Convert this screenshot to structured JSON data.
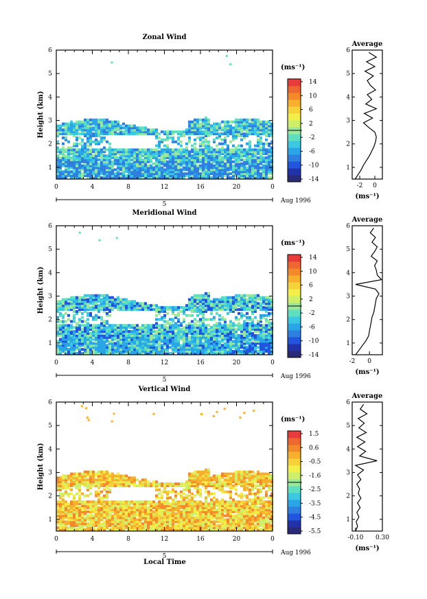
{
  "figure": {
    "bottom_label": "Local Time"
  },
  "colors": {
    "scale": [
      "#2a2a7a",
      "#2233aa",
      "#2255dd",
      "#2f7fe0",
      "#2aa6e6",
      "#3cc8e0",
      "#5ee0c0",
      "#9be89a",
      "#cfee6a",
      "#f2ee4a",
      "#f6d23a",
      "#f6b02e",
      "#f28a2c",
      "#ee6630",
      "#e83c3c"
    ],
    "zonal_field": [
      "#2aa6e6",
      "#3cc8e0",
      "#5ee0c0",
      "#2f7fe0",
      "#9be89a"
    ],
    "meridional_field": [
      "#3cc8e0",
      "#5ee0c0",
      "#9be89a",
      "#2aa6e6",
      "#2255dd"
    ],
    "vertical_field": [
      "#f6d23a",
      "#f2ee4a",
      "#f6b02e",
      "#cfee6a",
      "#f28a2c"
    ]
  },
  "chart_data": [
    {
      "id": "zonal",
      "type": "heatmap",
      "title": "Zonal Wind",
      "ylabel": "Height (km)",
      "xlim": [
        0,
        24
      ],
      "ylim": [
        0.5,
        6
      ],
      "x_ticks": [
        "0",
        "4",
        "8",
        "12",
        "16",
        "20",
        "0"
      ],
      "y_ticks": [
        "1",
        "2",
        "3",
        "4",
        "5",
        "6"
      ],
      "date_day": "5",
      "date_label": "Aug 1996",
      "colorbar": {
        "unit": "(ms⁻¹)",
        "ticks": [
          "14",
          "10",
          "6",
          "2",
          "-2",
          "-6",
          "-10",
          "-14"
        ],
        "range": [
          -16,
          16
        ]
      },
      "profile": {
        "title": "Average",
        "xlim": [
          -3,
          1
        ],
        "x_ticks": [
          "-2",
          "0"
        ],
        "xlabel": "(ms⁻¹)",
        "heights": [
          0.5,
          0.7,
          0.9,
          1.1,
          1.3,
          1.5,
          1.7,
          1.9,
          2.1,
          2.3,
          2.5,
          2.7,
          2.9,
          3.1,
          3.3,
          3.5,
          3.7,
          3.9,
          4.1,
          4.3,
          4.5,
          4.7,
          4.9,
          5.1,
          5.3,
          5.5,
          5.7,
          5.9
        ],
        "values": [
          -2.6,
          -2.2,
          -1.8,
          -1.5,
          -1.1,
          -0.7,
          -0.4,
          -0.1,
          0.1,
          0.2,
          0.0,
          -0.8,
          -1.5,
          -0.3,
          -1.4,
          0.2,
          -1.2,
          -0.4,
          -1.0,
          0.1,
          -0.6,
          -1.0,
          -0.2,
          -1.3,
          0.0,
          -1.1,
          0.2,
          -0.8
        ]
      }
    },
    {
      "id": "meridional",
      "type": "heatmap",
      "title": "Meridional Wind",
      "ylabel": "Height (km)",
      "xlim": [
        0,
        24
      ],
      "ylim": [
        0.5,
        6
      ],
      "x_ticks": [
        "0",
        "4",
        "8",
        "12",
        "16",
        "20",
        "0"
      ],
      "y_ticks": [
        "1",
        "2",
        "3",
        "4",
        "5",
        "6"
      ],
      "date_day": "5",
      "date_label": "Aug 1996",
      "colorbar": {
        "unit": "(ms⁻¹)",
        "ticks": [
          "14",
          "10",
          "6",
          "2",
          "-2",
          "-6",
          "-10",
          "-14"
        ],
        "range": [
          -16,
          16
        ]
      },
      "profile": {
        "title": "Average",
        "xlim": [
          -2,
          1.5
        ],
        "x_ticks": [
          "-2",
          "0"
        ],
        "xlabel": "(ms⁻¹)",
        "heights": [
          0.5,
          0.7,
          0.9,
          1.1,
          1.3,
          1.5,
          1.7,
          1.9,
          2.1,
          2.3,
          2.5,
          2.7,
          2.9,
          3.1,
          3.3,
          3.5,
          3.7,
          3.9,
          4.1,
          4.3,
          4.5,
          4.7,
          4.9,
          5.1,
          5.3,
          5.5,
          5.7,
          5.9
        ],
        "values": [
          -1.6,
          -1.2,
          -0.8,
          -0.4,
          -0.1,
          0.0,
          0.1,
          0.2,
          0.3,
          0.5,
          0.6,
          0.7,
          0.8,
          1.1,
          0.7,
          -1.6,
          1.4,
          0.9,
          0.8,
          0.6,
          0.9,
          0.2,
          0.6,
          0.9,
          0.3,
          0.7,
          0.1,
          0.5
        ]
      }
    },
    {
      "id": "vertical",
      "type": "heatmap",
      "title": "Vertical Wind",
      "ylabel": "Height (km)",
      "xlim": [
        0,
        24
      ],
      "ylim": [
        0.5,
        6
      ],
      "x_ticks": [
        "0",
        "4",
        "8",
        "12",
        "16",
        "20",
        "0"
      ],
      "y_ticks": [
        "1",
        "2",
        "3",
        "4",
        "5",
        "6"
      ],
      "date_day": "5",
      "date_label": "Aug 1996",
      "colorbar": {
        "unit": "(ms⁻¹)",
        "ticks": [
          "1.5",
          "0.6",
          "-0.5",
          "-1.6",
          "-2.5",
          "-3.5",
          "-4.5",
          "-5.5"
        ],
        "range": [
          -6,
          2
        ]
      },
      "profile": {
        "title": "Average",
        "xlim": [
          -0.15,
          0.3
        ],
        "x_ticks": [
          "-0.10",
          "0.30"
        ],
        "xlabel": "(ms⁻¹)",
        "heights": [
          0.5,
          0.7,
          0.9,
          1.1,
          1.3,
          1.5,
          1.7,
          1.9,
          2.1,
          2.3,
          2.5,
          2.7,
          2.9,
          3.1,
          3.3,
          3.5,
          3.7,
          3.9,
          4.1,
          4.3,
          4.5,
          4.7,
          4.9,
          5.1,
          5.3,
          5.5,
          5.7,
          5.9
        ],
        "values": [
          -0.1,
          -0.07,
          -0.09,
          -0.05,
          -0.08,
          -0.03,
          -0.07,
          -0.02,
          -0.06,
          -0.04,
          -0.08,
          -0.02,
          -0.07,
          0.02,
          -0.1,
          0.22,
          -0.04,
          0.05,
          -0.07,
          0.04,
          -0.08,
          0.06,
          -0.05,
          0.03,
          -0.06,
          0.07,
          -0.03,
          0.02
        ]
      }
    }
  ]
}
